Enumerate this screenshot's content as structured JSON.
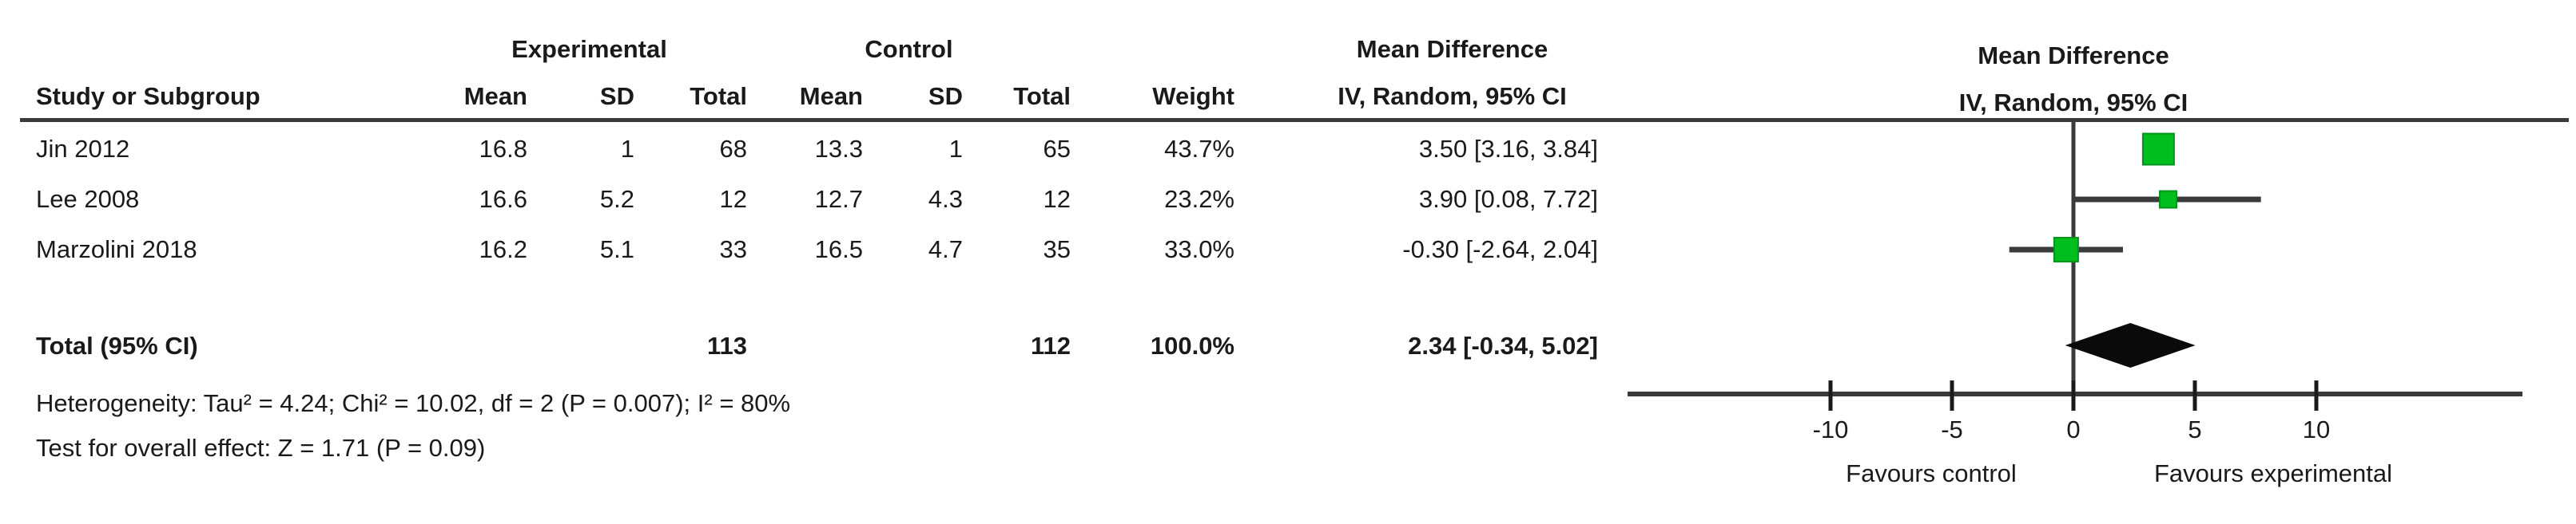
{
  "header": {
    "study_col": "Study or Subgroup",
    "group_experimental": "Experimental",
    "group_control": "Control",
    "effect_header": "Mean Difference",
    "method_header": "IV, Random, 95% CI",
    "cols": {
      "mean": "Mean",
      "sd": "SD",
      "total": "Total",
      "weight": "Weight"
    }
  },
  "footnotes": {
    "heterogeneity": "Heterogeneity: Tau² = 4.24; Chi² = 10.02, df = 2 (P = 0.007); I² = 80%",
    "overall_effect": "Test for overall effect: Z = 1.71 (P = 0.09)"
  },
  "colors": {
    "marker_green": "#00be1e",
    "marker_green_edge": "#00941a",
    "line_gray": "#3b3b3b",
    "diamond_black": "#0a0a0a"
  },
  "chart_data": {
    "type": "forest",
    "effect_measure": "Mean Difference",
    "model": "IV, Random, 95% CI",
    "studies": [
      {
        "label": "Jin 2012",
        "exp_mean": "16.8",
        "exp_sd": "1",
        "exp_total": "68",
        "ctrl_mean": "13.3",
        "ctrl_sd": "1",
        "ctrl_total": "65",
        "weight": "43.7%",
        "ci_text": "3.50 [3.16, 3.84]",
        "md": 3.5,
        "ci_low": 3.16,
        "ci_high": 3.84,
        "weight_pct": 43.7
      },
      {
        "label": "Lee 2008",
        "exp_mean": "16.6",
        "exp_sd": "5.2",
        "exp_total": "12",
        "ctrl_mean": "12.7",
        "ctrl_sd": "4.3",
        "ctrl_total": "12",
        "weight": "23.2%",
        "ci_text": "3.90 [0.08, 7.72]",
        "md": 3.9,
        "ci_low": 0.08,
        "ci_high": 7.72,
        "weight_pct": 23.2
      },
      {
        "label": "Marzolini 2018",
        "exp_mean": "16.2",
        "exp_sd": "5.1",
        "exp_total": "33",
        "ctrl_mean": "16.5",
        "ctrl_sd": "4.7",
        "ctrl_total": "35",
        "weight": "33.0%",
        "ci_text": "-0.30 [-2.64, 2.04]",
        "md": -0.3,
        "ci_low": -2.64,
        "ci_high": 2.04,
        "weight_pct": 33.0
      }
    ],
    "total": {
      "label": "Total (95% CI)",
      "exp_total": "113",
      "ctrl_total": "112",
      "weight": "100.0%",
      "ci_text": "2.34 [-0.34, 5.02]",
      "md": 2.34,
      "ci_low": -0.34,
      "ci_high": 5.02
    },
    "axis": {
      "ticks": [
        -10,
        -5,
        0,
        5,
        10
      ],
      "favours_left": "Favours control",
      "favours_right": "Favours experimental"
    }
  }
}
